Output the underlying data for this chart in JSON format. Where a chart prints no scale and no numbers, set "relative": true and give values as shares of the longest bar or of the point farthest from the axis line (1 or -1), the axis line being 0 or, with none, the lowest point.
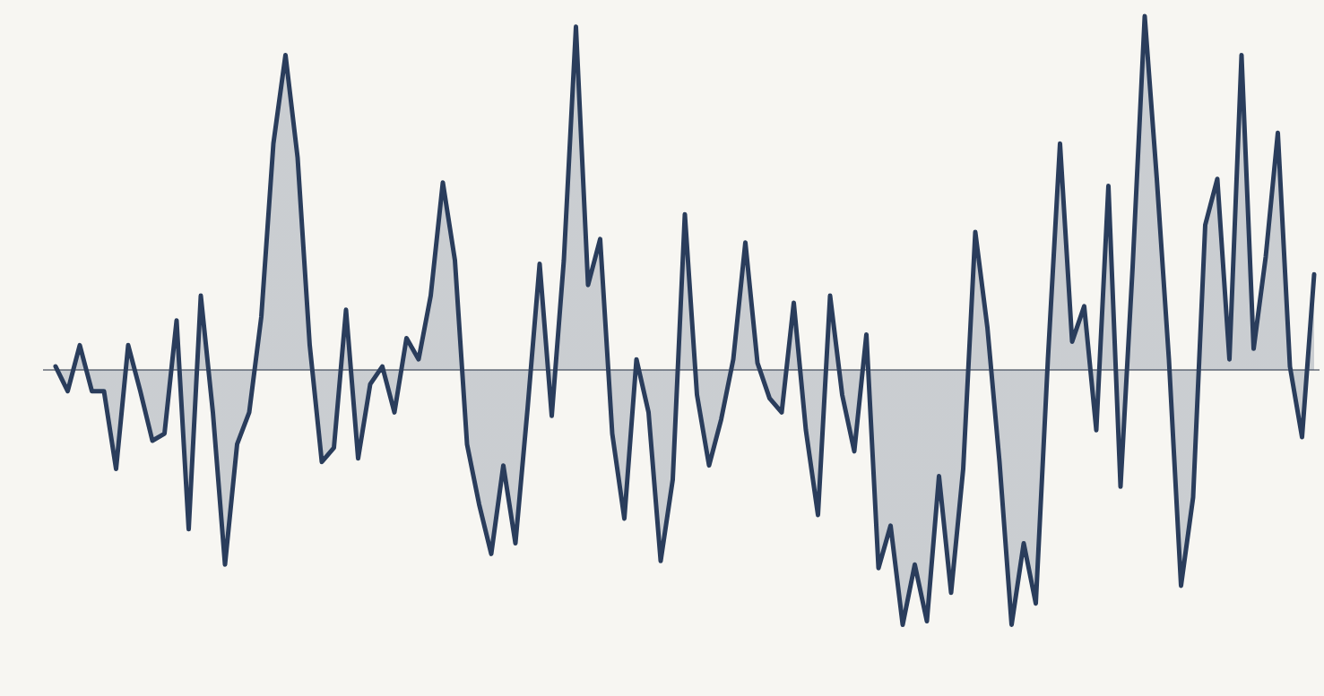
{
  "chart_data": {
    "type": "area",
    "relative": true,
    "categories": [
      null,
      null,
      null,
      null,
      null,
      null,
      null,
      null,
      null,
      null,
      null,
      null,
      null,
      null,
      null,
      null,
      null,
      null,
      null,
      null,
      null,
      null,
      null,
      null,
      null,
      null,
      null,
      null,
      null,
      null,
      null,
      null,
      null,
      null,
      null,
      null,
      null,
      null,
      null,
      null,
      null,
      null,
      null,
      null,
      null,
      null,
      null,
      null,
      null,
      null,
      null,
      null,
      null,
      null,
      null,
      null,
      null,
      null,
      null,
      null,
      null,
      null,
      null,
      null,
      null,
      null,
      null,
      null,
      null,
      null,
      null,
      null,
      null,
      null,
      null,
      null,
      null,
      null,
      null,
      null,
      null,
      null,
      null,
      null,
      null,
      null,
      null,
      null,
      null,
      null,
      null,
      null,
      null,
      null,
      null,
      null,
      null,
      null,
      null,
      null,
      null,
      null,
      null,
      null,
      null
    ],
    "series": [
      {
        "color": "#2a3d5c",
        "values": [
          0.01,
          -0.06,
          0.07,
          -0.06,
          -0.06,
          -0.28,
          0.07,
          -0.06,
          -0.2,
          -0.18,
          0.14,
          -0.45,
          0.21,
          -0.12,
          -0.55,
          -0.21,
          -0.12,
          0.15,
          0.64,
          0.89,
          0.6,
          0.07,
          -0.26,
          -0.22,
          0.17,
          -0.25,
          -0.04,
          0.01,
          -0.12,
          0.09,
          0.03,
          0.21,
          0.53,
          0.31,
          -0.21,
          -0.38,
          -0.52,
          -0.27,
          -0.49,
          -0.11,
          0.3,
          -0.13,
          0.31,
          0.97,
          0.24,
          0.37,
          -0.18,
          -0.42,
          0.03,
          -0.12,
          -0.54,
          -0.31,
          0.44,
          -0.07,
          -0.27,
          -0.14,
          0.03,
          0.36,
          0.02,
          -0.08,
          -0.12,
          0.19,
          -0.17,
          -0.41,
          0.21,
          -0.07,
          -0.23,
          0.1,
          -0.56,
          -0.44,
          -0.72,
          -0.55,
          -0.71,
          -0.3,
          -0.63,
          -0.28,
          0.39,
          0.12,
          -0.26,
          -0.72,
          -0.49,
          -0.66,
          0.03,
          0.64,
          0.08,
          0.18,
          -0.17,
          0.52,
          -0.33,
          0.29,
          1,
          0.54,
          0.03,
          -0.61,
          -0.36,
          0.41,
          0.54,
          0.03,
          0.89,
          0.06,
          0.32,
          0.67,
          0.01,
          -0.19,
          0.27
        ]
      }
    ]
  }
}
